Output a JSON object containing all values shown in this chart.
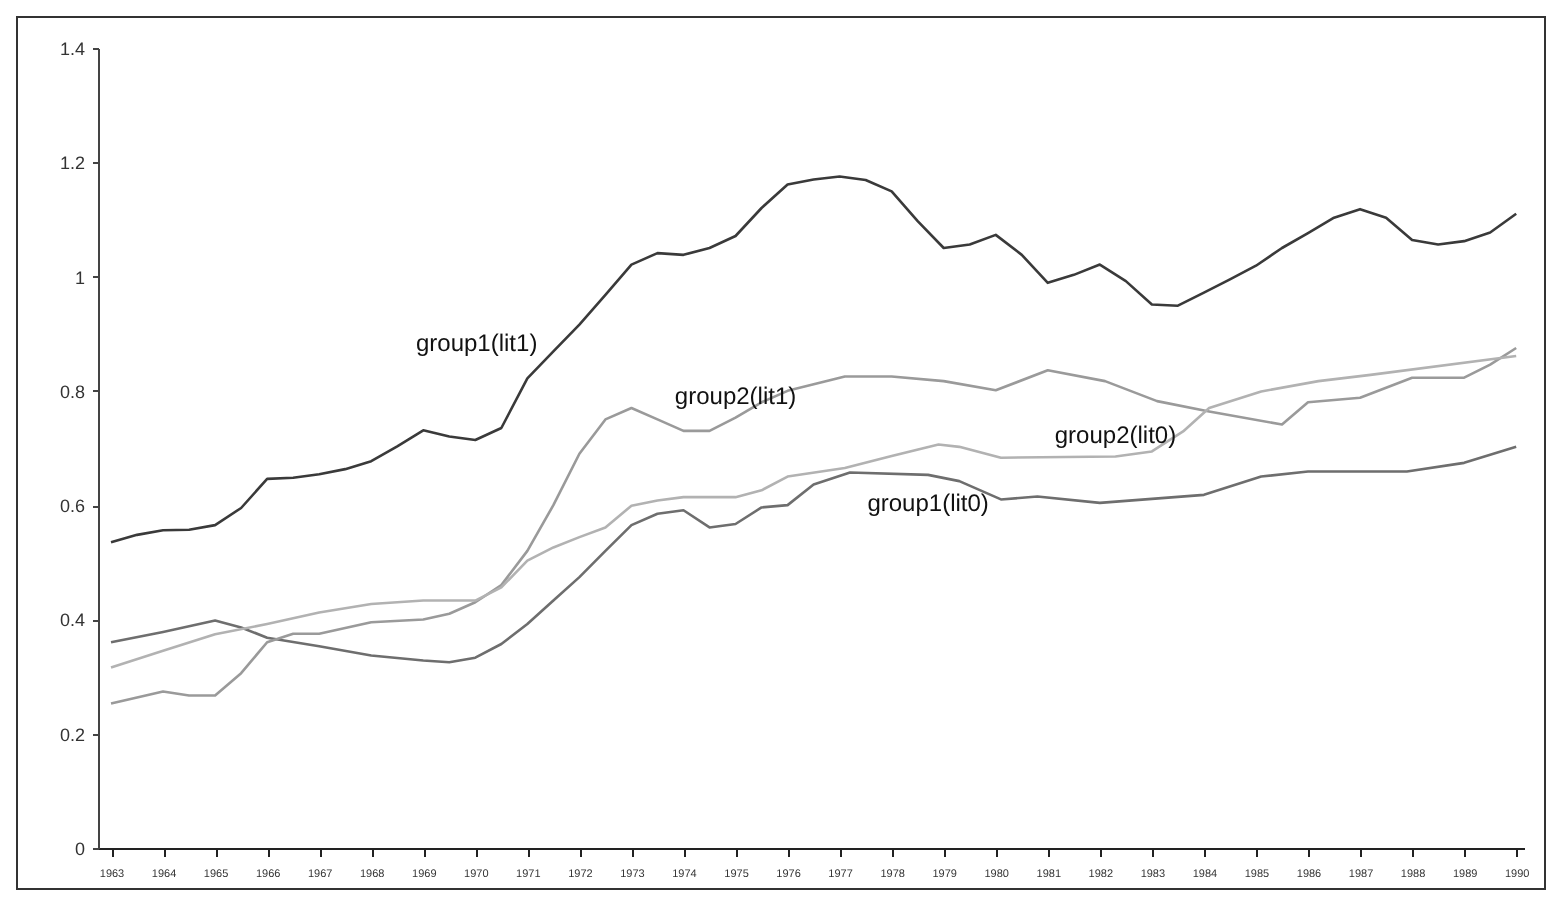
{
  "chart_data": {
    "type": "line",
    "xlim": [
      1962.75,
      1990.15
    ],
    "xticks": [
      1963,
      1964,
      1965,
      1966,
      1967,
      1968,
      1969,
      1970,
      1971,
      1972,
      1973,
      1974,
      1975,
      1976,
      1977,
      1978,
      1979,
      1980,
      1981,
      1982,
      1983,
      1984,
      1985,
      1986,
      1987,
      1988,
      1989,
      1990
    ],
    "ylim": [
      0,
      1.4
    ],
    "yticks": [
      0,
      0.2,
      0.4,
      0.6,
      0.8,
      1,
      1.2,
      1.4
    ],
    "grid": false,
    "legend": false,
    "marker": "none",
    "line_style": "solid",
    "series": [
      {
        "name": "group1(lit1)",
        "color": "#3a3a3a",
        "x": [
          1963,
          1963.5,
          1964,
          1964.5,
          1965,
          1965.5,
          1966,
          1966.5,
          1967,
          1967.5,
          1968,
          1968.5,
          1969,
          1969.5,
          1970,
          1970.5,
          1971,
          1971.5,
          1972,
          1972.5,
          1973,
          1973.5,
          1974,
          1974.5,
          1975,
          1975.5,
          1976,
          1976.5,
          1977,
          1977.5,
          1978,
          1978.5,
          1979,
          1979.5,
          1980,
          1980.5,
          1981,
          1981.5,
          1982,
          1982.5,
          1983,
          1983.5,
          1984,
          1984.5,
          1985,
          1985.5,
          1986,
          1986.5,
          1987,
          1987.5,
          1988,
          1988.5,
          1989,
          1989.5,
          1990
        ],
        "values": [
          0.535,
          0.548,
          0.556,
          0.557,
          0.565,
          0.595,
          0.646,
          0.648,
          0.654,
          0.663,
          0.677,
          0.703,
          0.731,
          0.72,
          0.714,
          0.735,
          0.822,
          0.869,
          0.916,
          0.968,
          1.021,
          1.041,
          1.038,
          1.05,
          1.071,
          1.12,
          1.161,
          1.17,
          1.175,
          1.169,
          1.149,
          1.097,
          1.05,
          1.056,
          1.073,
          1.038,
          0.989,
          1.003,
          1.021,
          0.992,
          0.951,
          0.949,
          0.972,
          0.995,
          1.019,
          1.05,
          1.076,
          1.103,
          1.118,
          1.103,
          1.064,
          1.056,
          1.062,
          1.077,
          1.11
        ]
      },
      {
        "name": "group1(lit0)",
        "color": "#6e6e6e",
        "x": [
          1963,
          1964,
          1965,
          1965.5,
          1966,
          1967,
          1968,
          1969,
          1969.5,
          1970,
          1970.5,
          1971,
          1971.5,
          1972,
          1972.5,
          1973,
          1973.5,
          1974,
          1974.5,
          1975,
          1975.5,
          1976,
          1976.5,
          1977.2,
          1978.7,
          1979.3,
          1980.1,
          1980.8,
          1982,
          1984,
          1985.1,
          1986,
          1987.9,
          1989,
          1990
        ],
        "values": [
          0.36,
          0.378,
          0.398,
          0.386,
          0.368,
          0.353,
          0.337,
          0.328,
          0.325,
          0.333,
          0.357,
          0.392,
          0.433,
          0.474,
          0.52,
          0.565,
          0.585,
          0.591,
          0.561,
          0.567,
          0.596,
          0.6,
          0.636,
          0.657,
          0.653,
          0.642,
          0.61,
          0.615,
          0.604,
          0.618,
          0.65,
          0.659,
          0.659,
          0.674,
          0.702
        ]
      },
      {
        "name": "group2(lit1)",
        "color": "#9a9a9a",
        "x": [
          1963,
          1964,
          1964.5,
          1965,
          1965.5,
          1966,
          1966.5,
          1967,
          1968,
          1969,
          1969.5,
          1970,
          1970.5,
          1971,
          1971.5,
          1972,
          1972.5,
          1973,
          1973.5,
          1974,
          1974.5,
          1975,
          1975.5,
          1976,
          1977.1,
          1978,
          1979,
          1980,
          1981,
          1982.1,
          1983.1,
          1984.1,
          1985.5,
          1986,
          1987,
          1988,
          1988.5,
          1989,
          1989.5,
          1990
        ],
        "values": [
          0.253,
          0.274,
          0.267,
          0.267,
          0.306,
          0.36,
          0.375,
          0.375,
          0.395,
          0.4,
          0.41,
          0.43,
          0.46,
          0.52,
          0.6,
          0.69,
          0.75,
          0.77,
          0.75,
          0.73,
          0.73,
          0.753,
          0.78,
          0.8,
          0.825,
          0.825,
          0.817,
          0.801,
          0.836,
          0.817,
          0.782,
          0.764,
          0.741,
          0.78,
          0.788,
          0.823,
          0.823,
          0.823,
          0.846,
          0.875
        ]
      },
      {
        "name": "group2(lit0)",
        "color": "#b2b2b2",
        "x": [
          1963,
          1964,
          1965,
          1966,
          1967,
          1968,
          1969,
          1970,
          1970.5,
          1971,
          1971.5,
          1972,
          1972.5,
          1973,
          1973.5,
          1974,
          1975,
          1975.5,
          1976,
          1977.1,
          1978,
          1978.9,
          1979.3,
          1980.1,
          1982.3,
          1983,
          1983.6,
          1984.1,
          1985.1,
          1986.2,
          1987.2,
          1990
        ],
        "values": [
          0.316,
          0.345,
          0.374,
          0.392,
          0.412,
          0.427,
          0.433,
          0.433,
          0.456,
          0.503,
          0.526,
          0.544,
          0.561,
          0.599,
          0.608,
          0.614,
          0.614,
          0.626,
          0.65,
          0.665,
          0.686,
          0.706,
          0.702,
          0.683,
          0.685,
          0.694,
          0.729,
          0.77,
          0.799,
          0.817,
          0.828,
          0.861
        ]
      }
    ]
  }
}
